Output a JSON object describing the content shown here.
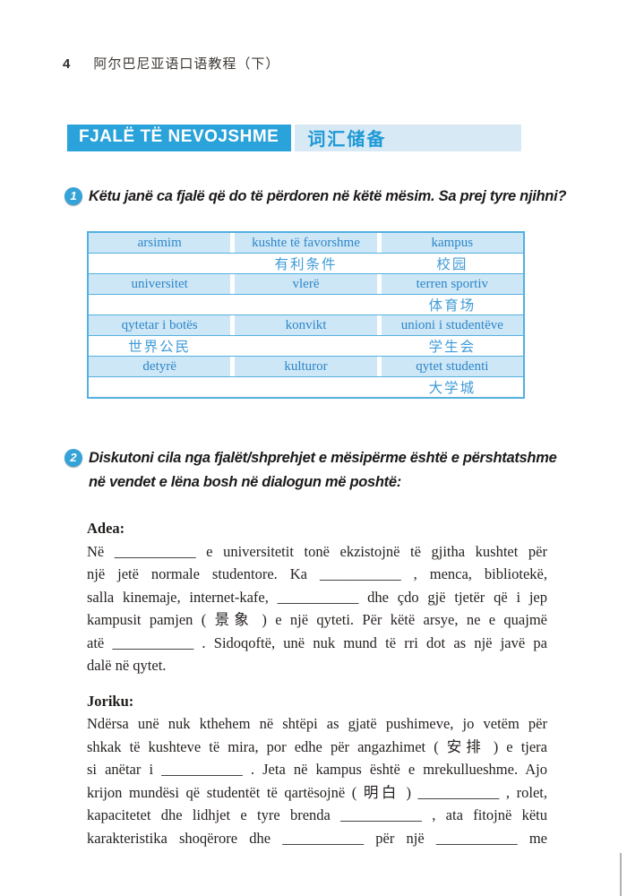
{
  "page": {
    "number": "4",
    "book_title": "阿尔巴尼亚语口语教程（下）"
  },
  "banner": {
    "title_albanian": "FJALË TË NEVOJSHME",
    "title_chinese": "词汇储备"
  },
  "exercises": {
    "ex1": {
      "number": "1",
      "prompt": "Këtu janë ca fjalë që do të përdoren në këtë mësim. Sa prej tyre njihni?"
    },
    "ex2": {
      "number": "2",
      "prompt_line1": "Diskutoni cila nga fjalët/shprehjet e mësipërme është e përshtatshme",
      "prompt_line2": "në vendet e lëna bosh në dialogun më poshtë:"
    }
  },
  "vocab_table": {
    "rows": [
      {
        "cells": [
          "arsimim",
          "kushte të favorshme",
          "kampus"
        ]
      },
      {
        "cells": [
          "",
          "有利条件",
          "校园"
        ]
      },
      {
        "cells": [
          "universitet",
          "vlerë",
          "terren sportiv"
        ]
      },
      {
        "cells": [
          "",
          "",
          "体育场"
        ]
      },
      {
        "cells": [
          "qytetar i botës",
          "konvikt",
          "unioni i studentëve"
        ]
      },
      {
        "cells": [
          "世界公民",
          "",
          "学生会"
        ]
      },
      {
        "cells": [
          "detyrë",
          "kulturor",
          "qytet studenti"
        ]
      },
      {
        "cells": [
          "",
          "",
          "大学城"
        ]
      }
    ]
  },
  "dialogue": {
    "speaker_1": "Adea:",
    "adea_lines": [
      "Në ___________ e universitetit tonë ekzistojnë të gjitha kushtet për",
      "një jetë normale studentore. Ka ___________ , menca, bibliotekë,",
      "salla kinemaje, internet-kafe, ___________ dhe çdo gjë tjetër që i jep",
      "kampusit pamjen ( 景象 ) e një qyteti. Për këtë arsye, ne e quajmë",
      "atë ___________ . Sidoqoftë, unë nuk mund të rri dot as një javë pa",
      "dalë në qytet."
    ],
    "speaker_2": "Joriku:",
    "joriku_lines": [
      "Ndërsa unë nuk kthehem në shtëpi as gjatë pushimeve, jo vetëm për",
      "shkak të kushteve të mira, por edhe për angazhimet ( 安排 ) e tjera",
      "si anëtar i ___________ . Jeta në kampus është e mrekullueshme. Ajo",
      "krijon mundësi që studentët të qartësojnë ( 明白 ) ___________ , rolet,",
      "kapacitetet dhe lidhjet e tyre brenda ___________ , ata fitojnë këtu",
      "karakteristika shoqërore dhe ___________ për një ___________ me"
    ]
  },
  "colors": {
    "accent_blue": "#2aa2da",
    "banner_bg_light": "#d8e9f6",
    "table_fill": "#cde7f7",
    "table_border": "#54b0e0",
    "table_text_albanian": "#2e86c8",
    "table_text_chinese": "#3f9bd8",
    "body_text": "#262220"
  }
}
